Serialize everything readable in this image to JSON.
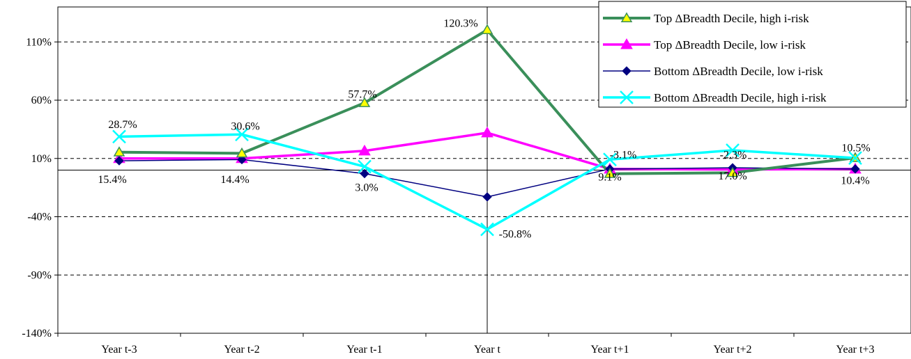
{
  "chart_data": {
    "type": "line",
    "title": "",
    "xlabel": "",
    "ylabel": "",
    "categories": [
      "Year t-3",
      "Year t-2",
      "Year t-1",
      "Year t",
      "Year t+1",
      "Year t+2",
      "Year t+3"
    ],
    "ylim": [
      -140,
      140
    ],
    "yticks": [
      -140,
      -90,
      -40,
      10,
      60,
      110
    ],
    "ytick_labels": [
      "-140%",
      "-90%",
      "-40%",
      "10%",
      "60%",
      "110%"
    ],
    "grid": "horizontal dashed",
    "legend_position": "top-right",
    "series": [
      {
        "name": "Top ΔBreadth Decile, high i-risk",
        "color": "#3a8f5a",
        "marker": "triangle-yellow",
        "values": [
          15.4,
          14.4,
          57.7,
          120.3,
          -3.1,
          -2.3,
          10.5
        ]
      },
      {
        "name": "Top ΔBreadth Decile, low i-risk",
        "color": "#ff00ff",
        "marker": "triangle",
        "values": [
          10.0,
          10.0,
          16.5,
          32.0,
          1.0,
          0.5,
          1.0
        ]
      },
      {
        "name": "Bottom ΔBreadth Decile, low i-risk",
        "color": "#000080",
        "marker": "diamond",
        "values": [
          8.0,
          9.0,
          -3.0,
          -23.0,
          1.0,
          2.0,
          1.0
        ]
      },
      {
        "name": "Bottom ΔBreadth Decile, high i-risk",
        "color": "#00ffff",
        "marker": "x",
        "values": [
          28.7,
          30.6,
          3.0,
          -50.8,
          9.1,
          17.0,
          10.4
        ]
      }
    ],
    "annotations": [
      {
        "text": "28.7%"
      },
      {
        "text": "30.6%"
      },
      {
        "text": "57.7%"
      },
      {
        "text": "120.3%"
      },
      {
        "text": "-3.1%"
      },
      {
        "text": "-2.3%"
      },
      {
        "text": "10.5%"
      },
      {
        "text": "15.4%"
      },
      {
        "text": "14.4%"
      },
      {
        "text": "3.0%"
      },
      {
        "text": "-50.8%"
      },
      {
        "text": "9.1%"
      },
      {
        "text": "17.0%"
      },
      {
        "text": "10.4%"
      }
    ]
  }
}
